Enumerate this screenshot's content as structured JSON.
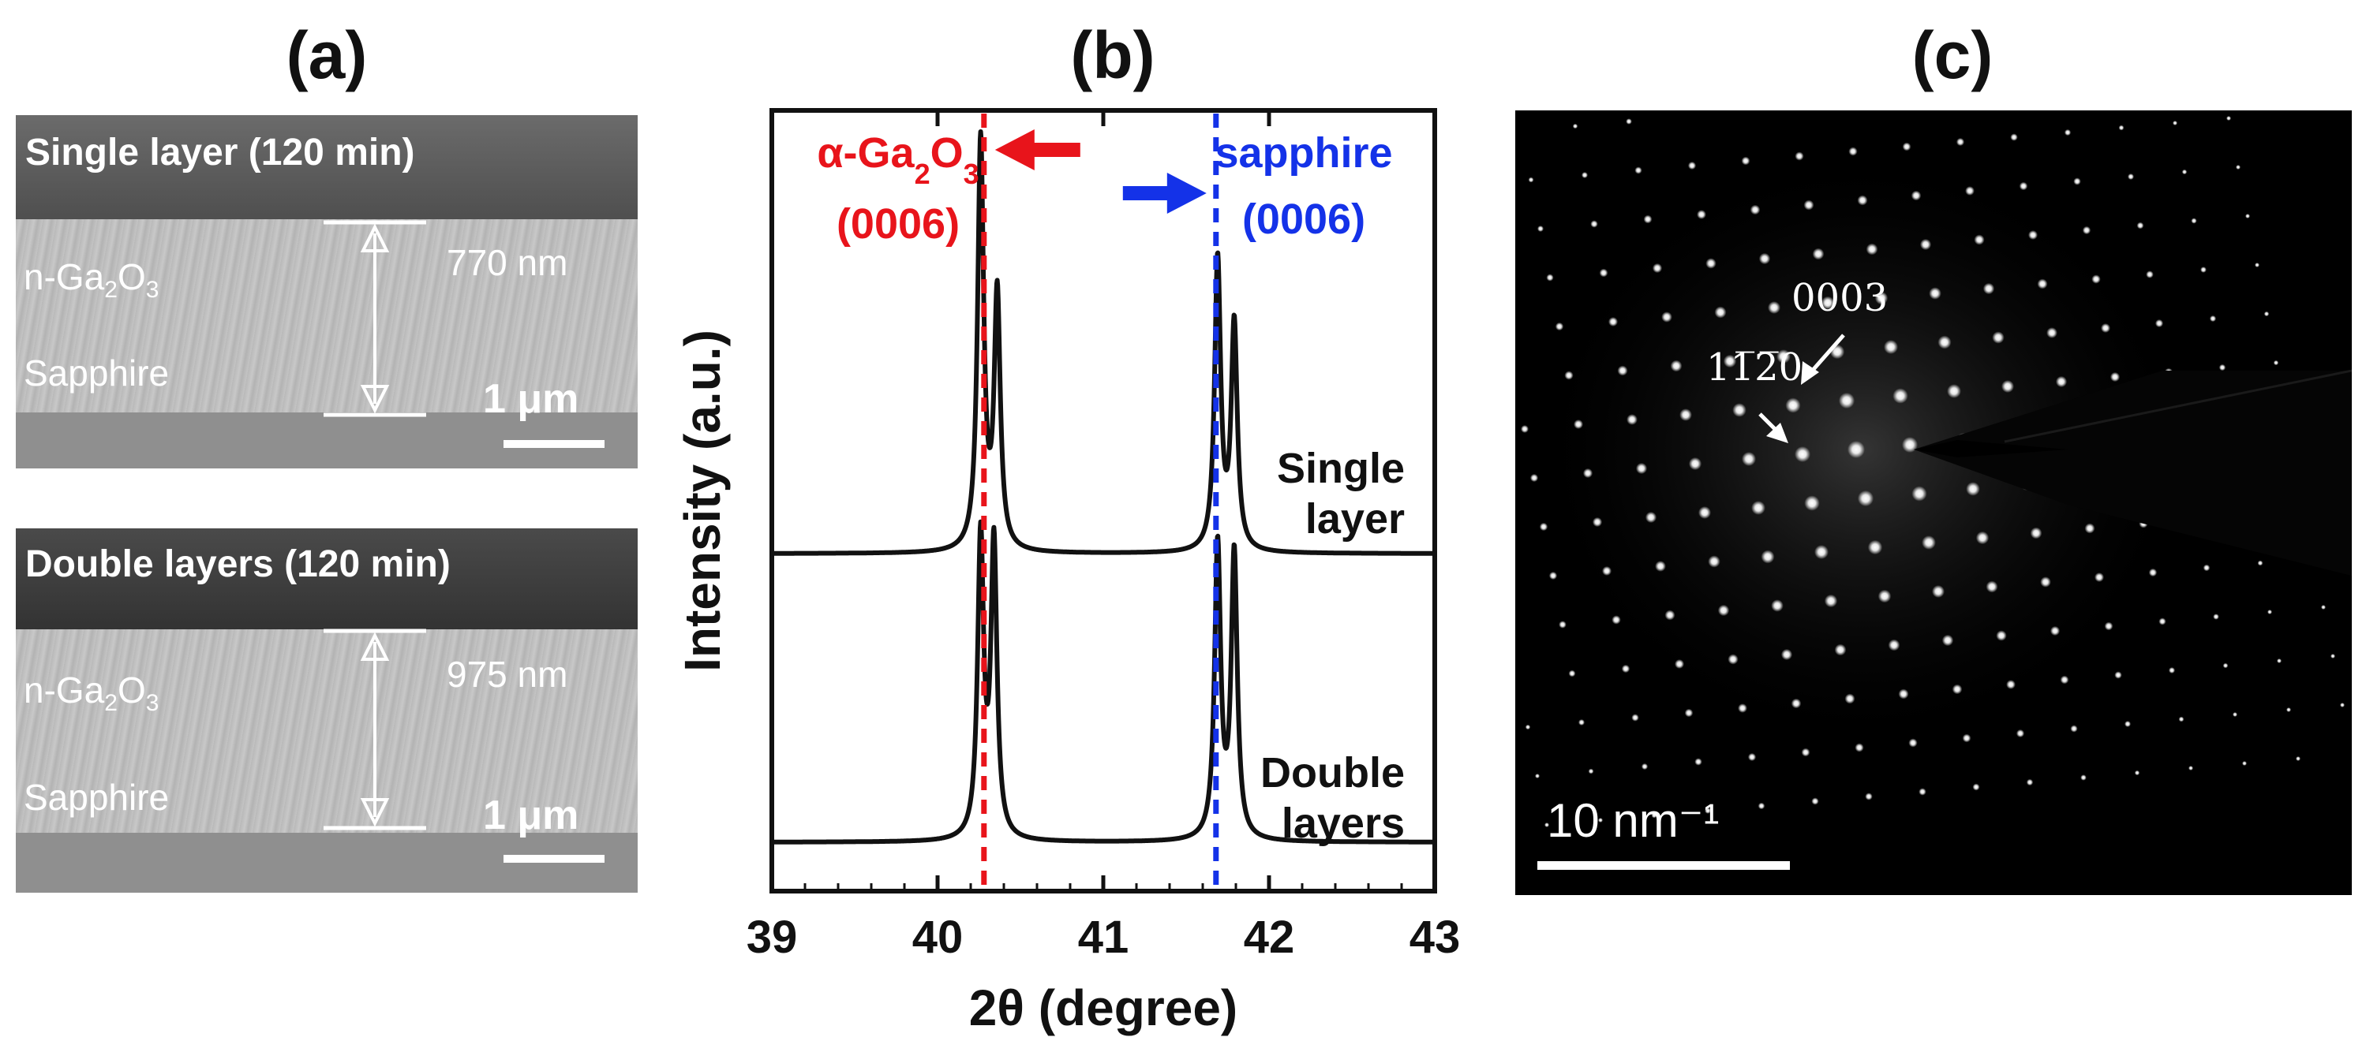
{
  "panels": {
    "a": {
      "label": "(a)",
      "top": {
        "title": "Single layer (120 min)",
        "film_label": "n-Ga₂O₃",
        "thickness": "770 nm",
        "substrate": "Sapphire",
        "scale": "1 μm"
      },
      "bottom": {
        "title": "Double layers (120 min)",
        "film_label": "n-Ga₂O₃",
        "thickness": "975 nm",
        "substrate": "Sapphire",
        "scale": "1 μm"
      }
    },
    "b": {
      "label": "(b)"
    },
    "c": {
      "label": "(c)",
      "spot_label_1": "11̅2̅0",
      "spot_label_2": "0003",
      "scale": "10 nm⁻¹"
    }
  },
  "chart_data": {
    "type": "line",
    "xlabel": "2θ (degree)",
    "ylabel": "Intensity (a.u.)",
    "xlim": [
      39,
      43
    ],
    "xticks": [
      39,
      40,
      41,
      42,
      43
    ],
    "series": [
      {
        "name": "Single layer",
        "label_line1": "Single",
        "label_line2": "layer",
        "peaks": [
          {
            "x": 40.26,
            "height": 1.0
          },
          {
            "x": 40.36,
            "height": 0.62
          },
          {
            "x": 41.69,
            "height": 0.71
          },
          {
            "x": 41.79,
            "height": 0.55
          }
        ]
      },
      {
        "name": "Double layers",
        "label_line1": "Double",
        "label_line2": "layers",
        "peaks": [
          {
            "x": 40.26,
            "height": 1.0
          },
          {
            "x": 40.34,
            "height": 0.98
          },
          {
            "x": 41.69,
            "height": 0.98
          },
          {
            "x": 41.79,
            "height": 0.95
          }
        ]
      }
    ],
    "reference_lines": [
      {
        "x": 40.28,
        "color": "#e8141b",
        "label1": "α-Ga₂O₃",
        "label2": "(0006)"
      },
      {
        "x": 41.68,
        "color": "#1432e8",
        "label1": "sapphire",
        "label2": "(0006)"
      }
    ]
  }
}
